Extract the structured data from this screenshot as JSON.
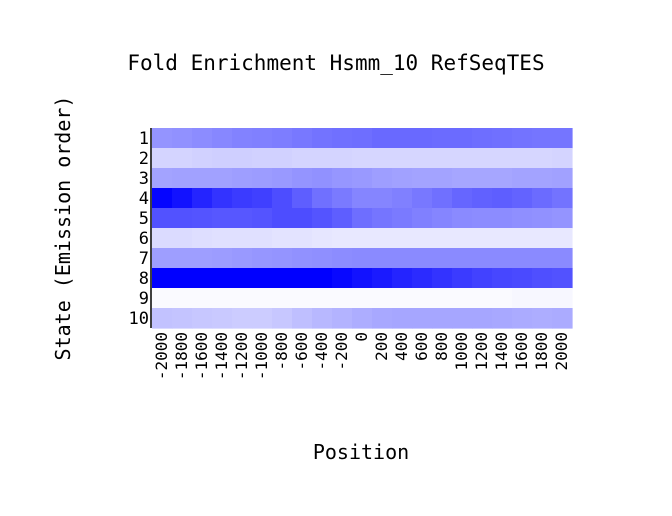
{
  "chart_data": {
    "type": "heatmap",
    "title": "Fold Enrichment Hsmm_10 RefSeqTES",
    "xlabel": "Position",
    "ylabel": "State (Emission order)",
    "x_ticks": [
      "-2000",
      "-1800",
      "-1600",
      "-1400",
      "-1200",
      "-1000",
      "-800",
      "-600",
      "-400",
      "-200",
      "0",
      "200",
      "400",
      "600",
      "800",
      "1000",
      "1200",
      "1400",
      "1600",
      "1800",
      "2000"
    ],
    "y_ticks": [
      "1",
      "2",
      "3",
      "4",
      "5",
      "6",
      "7",
      "8",
      "9",
      "10"
    ],
    "color_low": "#ffffff",
    "color_high": "#0000ff",
    "value_range": [
      0,
      1
    ],
    "values": [
      [
        0.42,
        0.43,
        0.45,
        0.47,
        0.49,
        0.5,
        0.51,
        0.53,
        0.55,
        0.56,
        0.57,
        0.59,
        0.59,
        0.59,
        0.58,
        0.58,
        0.57,
        0.56,
        0.55,
        0.54,
        0.54
      ],
      [
        0.17,
        0.17,
        0.18,
        0.19,
        0.19,
        0.18,
        0.18,
        0.17,
        0.17,
        0.17,
        0.16,
        0.16,
        0.16,
        0.16,
        0.16,
        0.16,
        0.16,
        0.16,
        0.16,
        0.16,
        0.17
      ],
      [
        0.36,
        0.37,
        0.37,
        0.37,
        0.38,
        0.39,
        0.4,
        0.42,
        0.43,
        0.41,
        0.4,
        0.38,
        0.37,
        0.36,
        0.36,
        0.35,
        0.35,
        0.35,
        0.36,
        0.36,
        0.37
      ],
      [
        0.98,
        0.93,
        0.86,
        0.8,
        0.77,
        0.75,
        0.7,
        0.63,
        0.56,
        0.52,
        0.48,
        0.48,
        0.5,
        0.53,
        0.56,
        0.6,
        0.62,
        0.63,
        0.61,
        0.58,
        0.55
      ],
      [
        0.68,
        0.68,
        0.67,
        0.66,
        0.66,
        0.67,
        0.7,
        0.7,
        0.67,
        0.63,
        0.57,
        0.54,
        0.52,
        0.5,
        0.48,
        0.46,
        0.45,
        0.45,
        0.44,
        0.43,
        0.42
      ],
      [
        0.14,
        0.14,
        0.13,
        0.12,
        0.12,
        0.12,
        0.11,
        0.11,
        0.1,
        0.09,
        0.09,
        0.09,
        0.09,
        0.09,
        0.09,
        0.09,
        0.09,
        0.09,
        0.09,
        0.09,
        0.09
      ],
      [
        0.38,
        0.38,
        0.38,
        0.39,
        0.4,
        0.41,
        0.42,
        0.43,
        0.44,
        0.45,
        0.46,
        0.46,
        0.46,
        0.46,
        0.46,
        0.46,
        0.46,
        0.46,
        0.46,
        0.46,
        0.46
      ],
      [
        1.0,
        1.0,
        1.0,
        1.0,
        1.0,
        1.0,
        1.0,
        1.0,
        1.0,
        0.97,
        0.93,
        0.9,
        0.86,
        0.83,
        0.8,
        0.77,
        0.74,
        0.72,
        0.71,
        0.69,
        0.68
      ],
      [
        0.02,
        0.02,
        0.02,
        0.02,
        0.02,
        0.02,
        0.02,
        0.02,
        0.02,
        0.02,
        0.02,
        0.02,
        0.02,
        0.02,
        0.02,
        0.02,
        0.02,
        0.02,
        0.03,
        0.03,
        0.03
      ],
      [
        0.24,
        0.23,
        0.22,
        0.21,
        0.2,
        0.2,
        0.22,
        0.25,
        0.28,
        0.3,
        0.32,
        0.34,
        0.35,
        0.35,
        0.35,
        0.35,
        0.35,
        0.34,
        0.33,
        0.32,
        0.33
      ]
    ]
  }
}
